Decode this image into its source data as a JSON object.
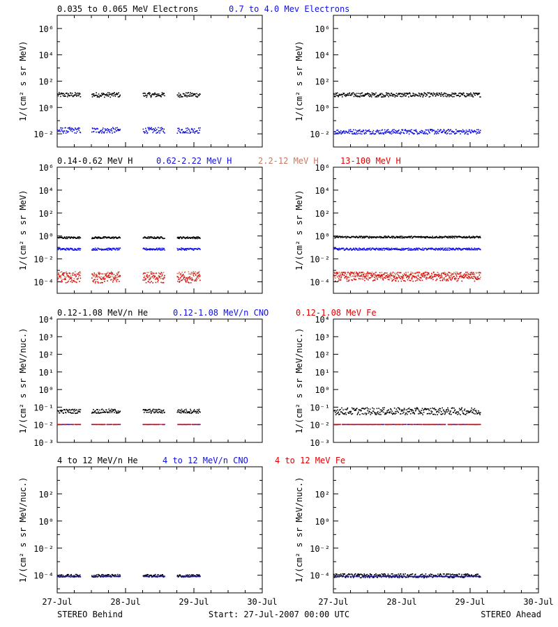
{
  "colors": {
    "black": "#000000",
    "blue": "#1010e0",
    "salmon": "#c87860",
    "red": "#e00000"
  },
  "footer": {
    "left": "STEREO Behind",
    "center": "Start: 27-Jul-2007 00:00 UTC",
    "right": "STEREO Ahead"
  },
  "chart_data": [
    {
      "type": "scatter",
      "row": 1,
      "titles": [
        {
          "text": "0.035 to 0.065 MeV Electrons",
          "color": "black"
        },
        {
          "text": "0.7 to 4.0 Mev Electrons",
          "color": "blue"
        }
      ],
      "ylabel": "1/(cm² s sr MeV)",
      "yscale": "log",
      "ylim_exp": [
        -3,
        7
      ],
      "yticks": [
        {
          "exp": -2,
          "label": "10⁻²"
        },
        {
          "exp": 0,
          "label": "10⁰"
        },
        {
          "exp": 2,
          "label": "10²"
        },
        {
          "exp": 4,
          "label": "10⁴"
        },
        {
          "exp": 6,
          "label": "10⁶"
        }
      ],
      "behind": {
        "segments": [
          [
            0.0,
            0.34
          ],
          [
            0.5,
            0.92
          ],
          [
            1.25,
            1.57
          ],
          [
            1.75,
            2.09
          ]
        ],
        "series": [
          {
            "color": "black",
            "level_exp": 1.0,
            "spread": 0.18
          },
          {
            "color": "blue",
            "level_exp": -1.7,
            "spread": 0.22
          }
        ]
      },
      "ahead": {
        "segments": [
          [
            0.0,
            2.15
          ]
        ],
        "series": [
          {
            "color": "black",
            "level_exp": 1.0,
            "spread": 0.16
          },
          {
            "color": "blue",
            "level_exp": -1.8,
            "spread": 0.18
          }
        ]
      }
    },
    {
      "type": "scatter",
      "row": 2,
      "titles": [
        {
          "text": "0.14-0.62 MeV H",
          "color": "black"
        },
        {
          "text": "0.62-2.22 MeV H",
          "color": "blue"
        },
        {
          "text": "2.2-12 MeV H",
          "color": "salmon"
        },
        {
          "text": "13-100 MeV H",
          "color": "red"
        }
      ],
      "ylabel": "1/(cm² s sr MeV)",
      "yscale": "log",
      "ylim_exp": [
        -5,
        6
      ],
      "yticks": [
        {
          "exp": -4,
          "label": "10⁻⁴"
        },
        {
          "exp": -2,
          "label": "10⁻²"
        },
        {
          "exp": 0,
          "label": "10⁰"
        },
        {
          "exp": 2,
          "label": "10²"
        },
        {
          "exp": 4,
          "label": "10⁴"
        },
        {
          "exp": 6,
          "label": "10⁶"
        }
      ],
      "behind": {
        "segments": [
          [
            0.0,
            0.34
          ],
          [
            0.5,
            0.92
          ],
          [
            1.25,
            1.57
          ],
          [
            1.75,
            2.09
          ]
        ],
        "series": [
          {
            "color": "black",
            "level_exp": -0.1,
            "spread": 0.08
          },
          {
            "color": "blue",
            "level_exp": -1.1,
            "spread": 0.09
          },
          {
            "color": "salmon",
            "level_exp": -3.4,
            "spread": 0.35
          },
          {
            "color": "red",
            "level_exp": -3.6,
            "spread": 0.45
          }
        ]
      },
      "ahead": {
        "segments": [
          [
            0.0,
            2.15
          ]
        ],
        "series": [
          {
            "color": "black",
            "level_exp": -0.05,
            "spread": 0.08
          },
          {
            "color": "blue",
            "level_exp": -1.1,
            "spread": 0.09
          },
          {
            "color": "salmon",
            "level_exp": -3.4,
            "spread": 0.3
          },
          {
            "color": "red",
            "level_exp": -3.5,
            "spread": 0.4
          }
        ]
      }
    },
    {
      "type": "scatter",
      "row": 3,
      "titles": [
        {
          "text": "0.12-1.08 MeV/n He",
          "color": "black"
        },
        {
          "text": "0.12-1.08 MeV/n CNO",
          "color": "blue"
        },
        {
          "text": "0.12-1.08 MeV Fe",
          "color": "red"
        }
      ],
      "ylabel": "1/(cm² s sr MeV/nuc.)",
      "yscale": "log",
      "ylim_exp": [
        -3,
        4
      ],
      "yticks": [
        {
          "exp": -3,
          "label": "10⁻³"
        },
        {
          "exp": -2,
          "label": "10⁻²"
        },
        {
          "exp": -1,
          "label": "10⁻¹"
        },
        {
          "exp": 0,
          "label": "10⁰"
        },
        {
          "exp": 1,
          "label": "10¹"
        },
        {
          "exp": 2,
          "label": "10²"
        },
        {
          "exp": 3,
          "label": "10³"
        },
        {
          "exp": 4,
          "label": "10⁴"
        }
      ],
      "behind": {
        "segments": [
          [
            0.0,
            0.34
          ],
          [
            0.5,
            0.92
          ],
          [
            1.25,
            1.57
          ],
          [
            1.75,
            2.09
          ]
        ],
        "series": [
          {
            "color": "black",
            "level_exp": -1.2,
            "spread": 0.12
          },
          {
            "color": "blue",
            "level_exp": -1.95,
            "spread": 0.0
          },
          {
            "color": "red",
            "level_exp": -1.95,
            "spread": 0.0
          }
        ]
      },
      "ahead": {
        "segments": [
          [
            0.0,
            2.15
          ]
        ],
        "series": [
          {
            "color": "black",
            "level_exp": -1.2,
            "spread": 0.2
          },
          {
            "color": "blue",
            "level_exp": -1.95,
            "spread": 0.0
          },
          {
            "color": "red",
            "level_exp": -1.95,
            "spread": 0.0
          }
        ]
      }
    },
    {
      "type": "scatter",
      "row": 4,
      "titles": [
        {
          "text": "4 to 12 MeV/n He",
          "color": "black"
        },
        {
          "text": "4 to 12 MeV/n CNO",
          "color": "blue"
        },
        {
          "text": "4 to 12 MeV Fe",
          "color": "red"
        }
      ],
      "ylabel": "1/(cm² s sr MeV/nuc.)",
      "yscale": "log",
      "ylim_exp": [
        -5.3,
        4
      ],
      "yticks": [
        {
          "exp": -4,
          "label": "10⁻⁴"
        },
        {
          "exp": -2,
          "label": "10⁻²"
        },
        {
          "exp": 0,
          "label": "10⁰"
        },
        {
          "exp": 2,
          "label": "10²"
        }
      ],
      "behind": {
        "segments": [
          [
            0.0,
            0.34
          ],
          [
            0.5,
            0.92
          ],
          [
            1.25,
            1.57
          ],
          [
            1.75,
            2.09
          ]
        ],
        "series": [
          {
            "color": "black",
            "level_exp": -4.0,
            "spread": 0.1
          },
          {
            "color": "blue",
            "level_exp": -4.05,
            "spread": 0.0
          }
        ]
      },
      "ahead": {
        "segments": [
          [
            0.0,
            2.15
          ]
        ],
        "series": [
          {
            "color": "black",
            "level_exp": -4.0,
            "spread": 0.15
          },
          {
            "color": "blue",
            "level_exp": -4.05,
            "spread": 0.0
          }
        ]
      }
    }
  ],
  "xaxis": {
    "ticks": [
      {
        "day": 0,
        "label": "27-Jul"
      },
      {
        "day": 1,
        "label": "28-Jul"
      },
      {
        "day": 2,
        "label": "29-Jul"
      },
      {
        "day": 3,
        "label": "30-Jul"
      }
    ],
    "xlim_days": [
      0,
      3
    ]
  }
}
